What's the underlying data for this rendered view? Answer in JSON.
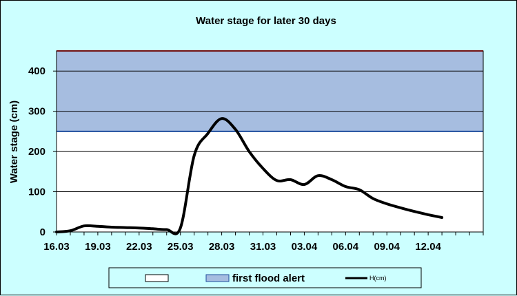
{
  "chart_data": {
    "type": "line",
    "title": "Water stage for later 30 days",
    "xlabel": "",
    "ylabel": "Water stage (cm)",
    "xlim": [
      "2023-03-16",
      "2023-04-16"
    ],
    "ylim": [
      0,
      450
    ],
    "yticks": [
      0,
      100,
      200,
      300,
      400
    ],
    "xtick_labels": [
      "16.03",
      "19.03",
      "22.03",
      "25.03",
      "28.03",
      "31.03",
      "03.04",
      "06.04",
      "09.04",
      "12.04"
    ],
    "bands": [
      {
        "name": "",
        "from": 0,
        "to": 250,
        "color": "#ffffff"
      },
      {
        "name": "first flood alert",
        "from": 250,
        "to": 450,
        "color": "#a6bde0"
      }
    ],
    "band_lines": [
      {
        "value": 250,
        "color": "#1f4e9e"
      },
      {
        "value": 450,
        "color": "#e52222"
      }
    ],
    "series": [
      {
        "name": "H(cm)",
        "color": "#000000",
        "x": [
          "2023-03-16",
          "2023-03-17",
          "2023-03-18",
          "2023-03-19",
          "2023-03-20",
          "2023-03-21",
          "2023-03-22",
          "2023-03-23",
          "2023-03-24",
          "2023-03-25",
          "2023-03-26",
          "2023-03-27",
          "2023-03-28",
          "2023-03-29",
          "2023-03-30",
          "2023-03-31",
          "2023-04-01",
          "2023-04-02",
          "2023-04-03",
          "2023-04-04",
          "2023-04-05",
          "2023-04-06",
          "2023-04-07",
          "2023-04-08",
          "2023-04-09",
          "2023-04-10",
          "2023-04-11",
          "2023-04-12",
          "2023-04-13"
        ],
        "values": [
          0,
          3,
          15,
          14,
          12,
          11,
          10,
          8,
          6,
          10,
          190,
          245,
          282,
          255,
          200,
          158,
          128,
          130,
          118,
          140,
          130,
          113,
          105,
          83,
          70,
          60,
          51,
          43,
          36
        ]
      }
    ],
    "legend": "bottom",
    "grid": true
  }
}
